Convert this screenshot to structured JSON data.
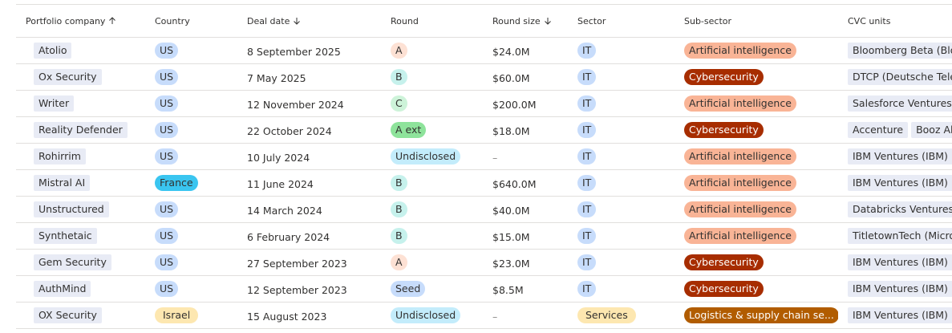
{
  "table": {
    "header": [
      "Portfolio company",
      "Country",
      "Deal date",
      "Round",
      "Round size",
      "Sector",
      "Sub-sector",
      "CVC units"
    ],
    "rows": [
      [
        "Atolio",
        "US",
        "8 September 2025",
        "A",
        "$24.0M",
        "IT",
        "Artificial intelligence",
        [
          "Bloomberg Beta (Blo"
        ]
      ],
      [
        "Ox Security",
        "US",
        "7 May 2025",
        "B",
        "$60.0M",
        "IT",
        "Cybersecurity",
        [
          "DTCP (Deutsche Tele"
        ]
      ],
      [
        "Writer",
        "US",
        "12 November 2024",
        "C",
        "$200.0M",
        "IT",
        "Artificial intelligence",
        [
          "Salesforce Ventures ("
        ]
      ],
      [
        "Reality Defender",
        "US",
        "22 October 2024",
        "A ext",
        "$18.0M",
        "IT",
        "Cybersecurity",
        [
          "Accenture",
          "Booz Al"
        ]
      ],
      [
        "Rohirrim",
        "US",
        "10 July 2024",
        "Undisclosed",
        "–",
        "IT",
        "Artificial intelligence",
        [
          "IBM Ventures (IBM)"
        ]
      ],
      [
        "Mistral AI",
        "France",
        "11 June 2024",
        "B",
        "$640.0M",
        "IT",
        "Artificial intelligence",
        [
          "IBM Ventures (IBM)"
        ]
      ],
      [
        "Unstructured",
        "US",
        "14 March 2024",
        "B",
        "$40.0M",
        "IT",
        "Artificial intelligence",
        [
          "Databricks Ventures"
        ]
      ],
      [
        "Synthetaic",
        "US",
        "6 February 2024",
        "B",
        "$15.0M",
        "IT",
        "Artificial intelligence",
        [
          "TitletownTech (Micro"
        ]
      ],
      [
        "Gem Security",
        "US",
        "27 September 2023",
        "A",
        "$23.0M",
        "IT",
        "Cybersecurity",
        [
          "IBM Ventures (IBM)"
        ]
      ],
      [
        "AuthMind",
        "US",
        "12 September 2023",
        "Seed",
        "$8.5M",
        "IT",
        "Cybersecurity",
        [
          "IBM Ventures (IBM)"
        ]
      ],
      [
        "OX Security",
        "Israel",
        "15 August 2023",
        "Undisclosed",
        "–",
        "Services",
        "Logistics & supply chain se...",
        [
          "IBM Ventures (IBM)"
        ]
      ]
    ]
  }
}
